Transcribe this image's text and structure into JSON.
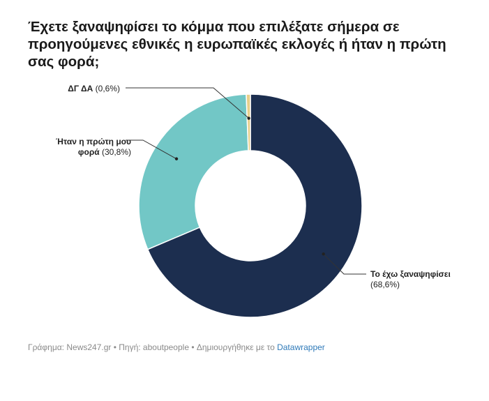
{
  "title": "Έχετε ξαναψηφίσει το κόμμα που επιλέξατε σήμερα σε προηγούμενες εθνικές η ευρωπαϊκές εκλογές ή ήταν η πρώτη σας φορά;",
  "chart_data": {
    "type": "pie",
    "donut": true,
    "categories": [
      "Το έχω ξαναψηφίσει",
      "Ήταν η πρώτη μου φορά",
      "ΔΓ ΔΑ"
    ],
    "values": [
      68.6,
      30.8,
      0.6
    ],
    "value_labels": [
      "(68,6%)",
      "(30,8%)",
      "(0,6%)"
    ],
    "colors": [
      "#1c2e4f",
      "#72c7c6",
      "#e8cf8a"
    ]
  },
  "labels": {
    "s0_name": "Το έχω ξαναψηφίσει",
    "s0_value": "(68,6%)",
    "s1_name_line1": "Ήταν η πρώτη μου",
    "s1_name_line2": "φορά",
    "s1_value": "(30,8%)",
    "s2_name": "ΔΓ ΔΑ",
    "s2_value": "(0,6%)"
  },
  "footer": {
    "text": "Γράφημα: News247.gr • Πηγή: aboutpeople • Δημιουργήθηκε με το",
    "link": "Datawrapper"
  }
}
